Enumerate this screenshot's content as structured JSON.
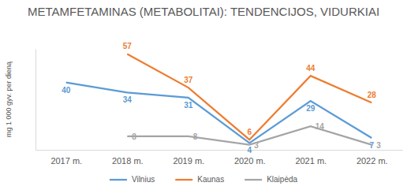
{
  "chart_data": {
    "type": "line",
    "title": "METAMFETAMINAS (METABOLITAI): TENDENCIJOS, VIDURKIAI",
    "y_label": "mg 1 000 gyv. per dieną",
    "categories": [
      "2017 m.",
      "2018 m.",
      "2019 m.",
      "2020 m.",
      "2021 m.",
      "2022 m."
    ],
    "series": [
      {
        "name": "Vilnius",
        "color": "#5b9bd5",
        "values": [
          40,
          34,
          31,
          4,
          29,
          7
        ]
      },
      {
        "name": "Kaunas",
        "color": "#ed7d31",
        "values": [
          null,
          57,
          37,
          6,
          44,
          28
        ]
      },
      {
        "name": "Klaipėda",
        "color": "#a5a5a5",
        "values": [
          null,
          8,
          8,
          3,
          14,
          3
        ]
      }
    ],
    "ylim": [
      0,
      60
    ],
    "tick_labels": "x",
    "grid": false,
    "legend": "bottom",
    "data_labels": true,
    "line_style": "solid",
    "marker": "none"
  }
}
